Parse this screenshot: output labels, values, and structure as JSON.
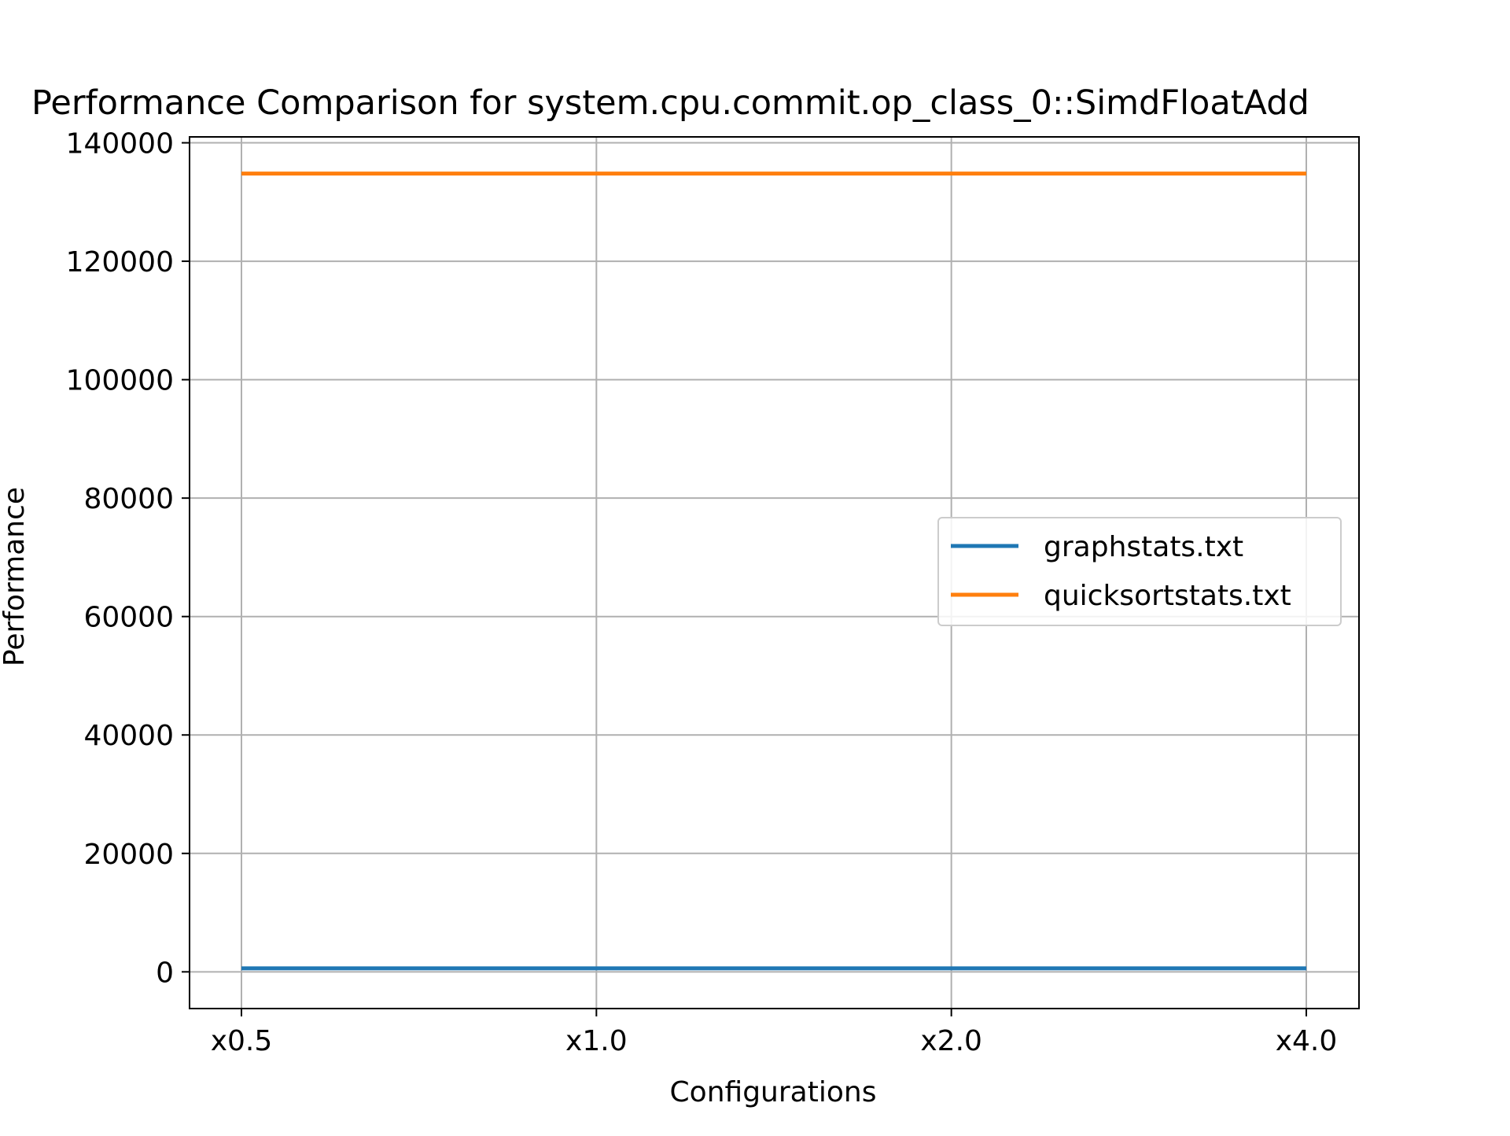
{
  "chart_data": {
    "type": "line",
    "title": "Performance Comparison for system.cpu.commit.op_class_0::SimdFloatAdd",
    "xlabel": "Configurations",
    "ylabel": "Performance",
    "categories": [
      "x0.5",
      "x1.0",
      "x2.0",
      "x4.0"
    ],
    "ylim": [
      -6200,
      141000
    ],
    "yticks": [
      0,
      20000,
      40000,
      60000,
      80000,
      100000,
      120000,
      140000
    ],
    "grid": true,
    "legend_position": "center-right",
    "series": [
      {
        "name": "graphstats.txt",
        "values": [
          600,
          600,
          600,
          600
        ],
        "color": "#1f77b4"
      },
      {
        "name": "quicksortstats.txt",
        "values": [
          134800,
          134800,
          134800,
          134800
        ],
        "color": "#ff7f0e"
      }
    ]
  }
}
